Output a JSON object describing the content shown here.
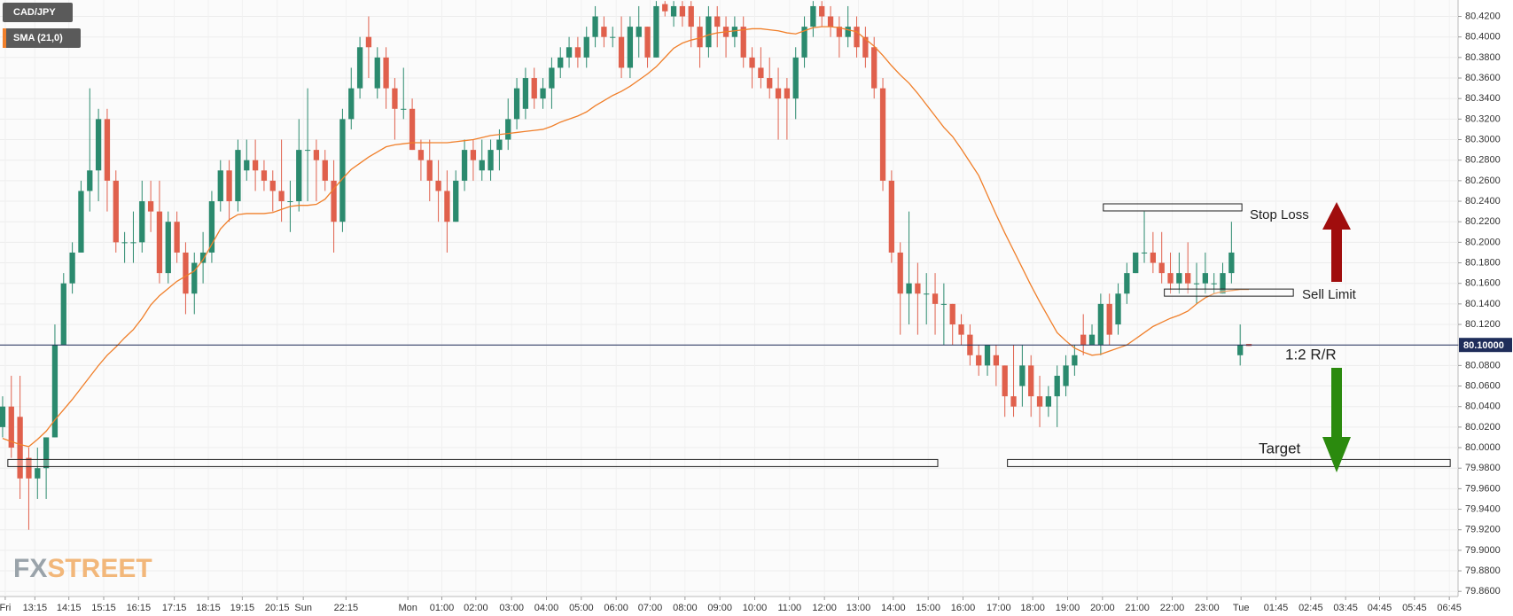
{
  "chart_data": {
    "type": "candlestick",
    "series": [
      {
        "name": "CAD/JPY",
        "type": "candlestick",
        "up_color": "#2b8a6e",
        "down_color": "#e0604c",
        "open": [
          80.02,
          80.04,
          80.03,
          79.99,
          79.97,
          79.98,
          80.01,
          80.1,
          80.16,
          80.19,
          80.25,
          80.27,
          80.32,
          80.26,
          80.2,
          80.2,
          80.2,
          80.24,
          80.23,
          80.17,
          80.22,
          80.19,
          80.15,
          80.18,
          80.19,
          80.24,
          80.27,
          80.24,
          80.27,
          80.28,
          80.27,
          80.26,
          80.25,
          80.24,
          80.24,
          80.29,
          80.29,
          80.28,
          80.26,
          80.22,
          80.32,
          80.35,
          80.4,
          80.35,
          80.38,
          80.35,
          80.33,
          80.33,
          80.29,
          80.28,
          80.26,
          80.25,
          80.22,
          80.26,
          80.29,
          80.27,
          80.27,
          80.29,
          80.3,
          80.32,
          80.33,
          80.36,
          80.34,
          80.35,
          80.37,
          80.38,
          80.39,
          80.38,
          80.4,
          80.41,
          80.4,
          80.4,
          80.37,
          80.4,
          80.41,
          80.38,
          80.432,
          80.42,
          80.43,
          80.43,
          80.41,
          80.39,
          80.42,
          80.41,
          80.4,
          80.41,
          80.38,
          80.37,
          80.36,
          80.35,
          80.35,
          80.34,
          80.38,
          80.41,
          80.43,
          80.42,
          80.41,
          80.4,
          80.41,
          80.4,
          80.39,
          80.35,
          80.26,
          80.19,
          80.15,
          80.16,
          80.15,
          80.15,
          80.14,
          80.14,
          80.12,
          80.11,
          80.09,
          80.08,
          80.09,
          80.08,
          80.05,
          80.06,
          80.08,
          80.05,
          80.04,
          80.05,
          80.06,
          80.08,
          80.11,
          80.1,
          80.1,
          80.14,
          80.12,
          80.15,
          80.17,
          80.19,
          80.19,
          80.18,
          80.17,
          80.16,
          80.17,
          80.16,
          80.16,
          80.16,
          80.15,
          80.17,
          80.09,
          80.101
        ],
        "high": [
          80.05,
          80.07,
          80.07,
          80.0,
          80.0,
          80.01,
          80.12,
          80.17,
          80.2,
          80.26,
          80.35,
          80.33,
          80.33,
          80.27,
          80.21,
          80.23,
          80.26,
          80.26,
          80.26,
          80.23,
          80.23,
          80.2,
          80.19,
          80.21,
          80.25,
          80.28,
          80.28,
          80.3,
          80.3,
          80.3,
          80.28,
          80.27,
          80.3,
          80.26,
          80.32,
          80.35,
          80.3,
          80.29,
          80.28,
          80.33,
          80.37,
          80.4,
          80.42,
          80.39,
          80.39,
          80.36,
          80.37,
          80.34,
          80.3,
          80.3,
          80.28,
          80.27,
          80.27,
          80.3,
          80.3,
          80.3,
          80.3,
          80.31,
          80.34,
          80.36,
          80.37,
          80.37,
          80.36,
          80.38,
          80.39,
          80.4,
          80.4,
          80.41,
          80.43,
          80.42,
          80.41,
          80.42,
          80.42,
          80.43,
          80.41,
          80.435,
          80.435,
          80.435,
          80.435,
          80.435,
          80.42,
          80.43,
          80.43,
          80.42,
          80.42,
          80.42,
          80.39,
          80.39,
          80.38,
          80.37,
          80.36,
          80.39,
          80.42,
          80.435,
          80.435,
          80.43,
          80.42,
          80.43,
          80.42,
          80.41,
          80.4,
          80.36,
          80.27,
          80.2,
          80.23,
          80.18,
          80.17,
          80.17,
          80.16,
          80.14,
          80.13,
          80.12,
          80.1,
          80.1,
          80.1,
          80.08,
          80.1,
          80.1,
          80.09,
          80.07,
          80.06,
          80.08,
          80.09,
          80.1,
          80.13,
          80.12,
          80.15,
          80.15,
          80.16,
          80.18,
          80.19,
          80.23,
          80.21,
          80.21,
          80.19,
          80.19,
          80.2,
          80.18,
          80.19,
          80.17,
          80.18,
          80.22,
          80.12,
          80.101
        ],
        "low": [
          80.01,
          79.99,
          79.95,
          79.92,
          79.95,
          79.95,
          80.01,
          80.1,
          80.15,
          80.19,
          80.23,
          80.24,
          80.23,
          80.19,
          80.18,
          80.18,
          80.19,
          80.21,
          80.16,
          80.16,
          80.18,
          80.13,
          80.13,
          80.16,
          80.18,
          80.23,
          80.22,
          80.23,
          80.26,
          80.25,
          80.25,
          80.23,
          80.22,
          80.21,
          80.23,
          80.24,
          80.24,
          80.25,
          80.19,
          80.21,
          80.31,
          80.34,
          80.36,
          80.34,
          80.33,
          80.3,
          80.32,
          80.29,
          80.26,
          80.24,
          80.22,
          80.19,
          80.22,
          80.25,
          80.26,
          80.26,
          80.26,
          80.27,
          80.29,
          80.31,
          80.32,
          80.33,
          80.33,
          80.33,
          80.36,
          80.37,
          80.37,
          80.37,
          80.39,
          80.39,
          80.39,
          80.36,
          80.36,
          80.38,
          80.37,
          80.38,
          80.42,
          80.41,
          80.41,
          80.39,
          80.37,
          80.38,
          80.39,
          80.38,
          80.39,
          80.37,
          80.35,
          80.35,
          80.34,
          80.3,
          80.3,
          80.32,
          80.37,
          80.4,
          80.41,
          80.4,
          80.38,
          80.39,
          80.38,
          80.37,
          80.34,
          80.25,
          80.18,
          80.11,
          80.12,
          80.11,
          80.12,
          80.11,
          80.1,
          80.1,
          80.1,
          80.08,
          80.07,
          80.07,
          80.06,
          80.03,
          80.03,
          80.04,
          80.03,
          80.02,
          80.03,
          80.02,
          80.05,
          80.07,
          80.09,
          80.1,
          80.09,
          80.1,
          80.11,
          80.14,
          80.17,
          80.18,
          80.17,
          80.16,
          80.15,
          80.15,
          80.15,
          80.14,
          80.15,
          80.15,
          80.15,
          80.16,
          80.08,
          80.099
        ],
        "close": [
          80.04,
          80.0,
          79.97,
          79.97,
          79.98,
          80.01,
          80.1,
          80.16,
          80.19,
          80.25,
          80.27,
          80.32,
          80.26,
          80.2,
          80.2,
          80.2,
          80.24,
          80.23,
          80.17,
          80.22,
          80.19,
          80.15,
          80.18,
          80.19,
          80.24,
          80.27,
          80.24,
          80.29,
          80.28,
          80.27,
          80.26,
          80.25,
          80.24,
          80.24,
          80.29,
          80.29,
          80.28,
          80.26,
          80.22,
          80.32,
          80.35,
          80.39,
          80.39,
          80.38,
          80.35,
          80.33,
          80.33,
          80.29,
          80.28,
          80.26,
          80.25,
          80.22,
          80.26,
          80.29,
          80.28,
          80.28,
          80.29,
          80.3,
          80.32,
          80.35,
          80.36,
          80.34,
          80.35,
          80.37,
          80.38,
          80.39,
          80.38,
          80.4,
          80.42,
          80.4,
          80.4,
          80.37,
          80.41,
          80.41,
          80.38,
          80.43,
          80.425,
          80.43,
          80.42,
          80.41,
          80.39,
          80.42,
          80.41,
          80.4,
          80.41,
          80.38,
          80.37,
          80.36,
          80.35,
          80.34,
          80.34,
          80.38,
          80.41,
          80.43,
          80.42,
          80.41,
          80.4,
          80.41,
          80.39,
          80.38,
          80.35,
          80.26,
          80.19,
          80.15,
          80.16,
          80.15,
          80.15,
          80.14,
          80.14,
          80.12,
          80.11,
          80.09,
          80.08,
          80.1,
          80.08,
          80.05,
          80.04,
          80.08,
          80.05,
          80.04,
          80.05,
          80.07,
          80.08,
          80.09,
          80.1,
          80.11,
          80.14,
          80.11,
          80.15,
          80.17,
          80.19,
          80.19,
          80.18,
          80.17,
          80.16,
          80.17,
          80.16,
          80.16,
          80.17,
          80.16,
          80.17,
          80.19,
          80.1,
          80.099
        ]
      },
      {
        "name": "SMA (21,0)",
        "type": "line",
        "color": "#f07f2a",
        "values": [
          80.009,
          80.006,
          80.003,
          80.001,
          80.008,
          80.016,
          80.027,
          80.037,
          80.047,
          80.058,
          80.069,
          80.08,
          80.09,
          80.098,
          80.107,
          80.115,
          80.126,
          80.139,
          80.148,
          80.155,
          80.162,
          80.167,
          80.172,
          80.183,
          80.198,
          80.213,
          80.222,
          80.227,
          80.228,
          80.228,
          80.228,
          80.229,
          80.232,
          80.235,
          80.236,
          80.236,
          80.237,
          80.242,
          80.252,
          80.262,
          80.271,
          80.277,
          80.283,
          80.288,
          80.293,
          80.295,
          80.296,
          80.297,
          80.297,
          80.297,
          80.297,
          80.297,
          80.298,
          80.299,
          80.3,
          80.302,
          80.304,
          80.305,
          80.306,
          80.307,
          80.308,
          80.309,
          80.31,
          80.313,
          80.317,
          80.32,
          80.323,
          80.327,
          80.333,
          80.338,
          80.343,
          80.347,
          80.352,
          80.358,
          80.364,
          80.371,
          80.38,
          80.389,
          80.394,
          80.397,
          80.399,
          80.402,
          80.404,
          80.405,
          80.406,
          80.407,
          80.408,
          80.408,
          80.407,
          80.406,
          80.404,
          80.403,
          80.406,
          80.409,
          80.41,
          80.41,
          80.409,
          80.407,
          80.405,
          80.398,
          80.391,
          80.382,
          80.372,
          80.363,
          80.355,
          80.345,
          80.334,
          80.323,
          80.312,
          80.303,
          80.291,
          80.278,
          80.265,
          80.246,
          80.227,
          80.209,
          80.192,
          80.175,
          80.158,
          80.142,
          80.127,
          80.112,
          80.104,
          80.097,
          80.093,
          80.09,
          80.091,
          80.094,
          80.097,
          80.1,
          80.106,
          80.112,
          80.118,
          80.122,
          80.126,
          80.129,
          80.133,
          80.14,
          80.146,
          80.15,
          80.152,
          80.153,
          80.154,
          80.154
        ]
      }
    ],
    "x": [
      0,
      1,
      2,
      3,
      4,
      5,
      6,
      7,
      8,
      9,
      10,
      11,
      12,
      13,
      14,
      15,
      16,
      17,
      18,
      19,
      20,
      21,
      22,
      23,
      24,
      25,
      26,
      27,
      28,
      29,
      30,
      31,
      32,
      33,
      34,
      35,
      36,
      37,
      38,
      39,
      40,
      41,
      42,
      43,
      44,
      45,
      46,
      47,
      48,
      49,
      50,
      51,
      52,
      53,
      54,
      55,
      56,
      57,
      58,
      59,
      60,
      61,
      62,
      63,
      64,
      65,
      66,
      67,
      68,
      69,
      70,
      71,
      72,
      73,
      74,
      75,
      76,
      77,
      78,
      79,
      80,
      81,
      82,
      83,
      84,
      85,
      86,
      87,
      88,
      89,
      90,
      91,
      92,
      93,
      94,
      95,
      96,
      97,
      98,
      99,
      100,
      101,
      102,
      103,
      104,
      105,
      106,
      107,
      108,
      109,
      110,
      111,
      112,
      113,
      114,
      115,
      116,
      117,
      118,
      119,
      120,
      121,
      122,
      123,
      124,
      125,
      126,
      127,
      128,
      129,
      130,
      131,
      132,
      133,
      134,
      135,
      136,
      137,
      138,
      139,
      140,
      141,
      142,
      143
    ],
    "xlim": [
      -0.3,
      167
    ],
    "xticks": [
      {
        "value": 0.3,
        "label": "Fri"
      },
      {
        "value": 3.7,
        "label": "13:15"
      },
      {
        "value": 7.6,
        "label": "14:15"
      },
      {
        "value": 11.6,
        "label": "15:15"
      },
      {
        "value": 15.6,
        "label": "16:15"
      },
      {
        "value": 19.7,
        "label": "17:15"
      },
      {
        "value": 23.6,
        "label": "18:15"
      },
      {
        "value": 27.5,
        "label": "19:15"
      },
      {
        "value": 31.5,
        "label": "20:15"
      },
      {
        "value": 34.5,
        "label": "Sun"
      },
      {
        "value": 39.4,
        "label": "22:15"
      },
      {
        "value": 46.5,
        "label": "Mon"
      },
      {
        "value": 50.4,
        "label": "01:00"
      },
      {
        "value": 54.3,
        "label": "02:00"
      },
      {
        "value": 58.4,
        "label": "03:00"
      },
      {
        "value": 62.4,
        "label": "04:00"
      },
      {
        "value": 66.4,
        "label": "05:00"
      },
      {
        "value": 70.4,
        "label": "06:00"
      },
      {
        "value": 74.3,
        "label": "07:00"
      },
      {
        "value": 78.3,
        "label": "08:00"
      },
      {
        "value": 82.3,
        "label": "09:00"
      },
      {
        "value": 86.3,
        "label": "10:00"
      },
      {
        "value": 90.3,
        "label": "11:00"
      },
      {
        "value": 94.3,
        "label": "12:00"
      },
      {
        "value": 98.2,
        "label": "13:00"
      },
      {
        "value": 102.2,
        "label": "14:00"
      },
      {
        "value": 106.2,
        "label": "15:00"
      },
      {
        "value": 110.2,
        "label": "16:00"
      },
      {
        "value": 114.3,
        "label": "17:00"
      },
      {
        "value": 118.2,
        "label": "18:00"
      },
      {
        "value": 122.2,
        "label": "19:00"
      },
      {
        "value": 126.2,
        "label": "20:00"
      },
      {
        "value": 130.2,
        "label": "21:00"
      },
      {
        "value": 134.2,
        "label": "22:00"
      },
      {
        "value": 138.2,
        "label": "23:00"
      },
      {
        "value": 142.1,
        "label": "Tue"
      },
      {
        "value": 146.1,
        "label": "01:45"
      },
      {
        "value": 150.1,
        "label": "02:45"
      },
      {
        "value": 154.1,
        "label": "03:45"
      },
      {
        "value": 158.0,
        "label": "04:45"
      },
      {
        "value": 162.0,
        "label": "05:45"
      },
      {
        "value": 166.0,
        "label": "06:45"
      }
    ],
    "ylim": [
      79.855,
      80.436
    ],
    "yticks": [
      {
        "value": 79.86,
        "label": "79.8600"
      },
      {
        "value": 79.88,
        "label": "79.8800"
      },
      {
        "value": 79.9,
        "label": "79.9000"
      },
      {
        "value": 79.92,
        "label": "79.9200"
      },
      {
        "value": 79.94,
        "label": "79.9400"
      },
      {
        "value": 79.96,
        "label": "79.9600"
      },
      {
        "value": 79.98,
        "label": "79.9800"
      },
      {
        "value": 80.0,
        "label": "80.0000"
      },
      {
        "value": 80.02,
        "label": "80.0200"
      },
      {
        "value": 80.04,
        "label": "80.0400"
      },
      {
        "value": 80.06,
        "label": "80.0600"
      },
      {
        "value": 80.08,
        "label": "80.0800"
      },
      {
        "value": 80.1,
        "label": "80.1000"
      },
      {
        "value": 80.12,
        "label": "80.1200"
      },
      {
        "value": 80.14,
        "label": "80.1400"
      },
      {
        "value": 80.16,
        "label": "80.1600"
      },
      {
        "value": 80.18,
        "label": "80.1800"
      },
      {
        "value": 80.2,
        "label": "80.2000"
      },
      {
        "value": 80.22,
        "label": "80.2200"
      },
      {
        "value": 80.24,
        "label": "80.2400"
      },
      {
        "value": 80.26,
        "label": "80.2600"
      },
      {
        "value": 80.28,
        "label": "80.2800"
      },
      {
        "value": 80.3,
        "label": "80.3000"
      },
      {
        "value": 80.32,
        "label": "80.3200"
      },
      {
        "value": 80.34,
        "label": "80.3400"
      },
      {
        "value": 80.36,
        "label": "80.3600"
      },
      {
        "value": 80.38,
        "label": "80.3800"
      },
      {
        "value": 80.4,
        "label": "80.4000"
      },
      {
        "value": 80.42,
        "label": "80.4200"
      }
    ],
    "grid": true,
    "current_price": {
      "value": 80.1,
      "label": "80.10000",
      "color": "#1f2d5a"
    },
    "annotations": [
      {
        "text": "Stop Loss",
        "value": 80.234,
        "x": [
          126.3,
          142.2
        ]
      },
      {
        "text": "Sell Limit",
        "value": 80.151,
        "x": [
          133.3,
          148.1
        ]
      },
      {
        "text": "Target",
        "value": 79.985,
        "x": [
          115.3,
          166.1
        ]
      }
    ],
    "support": {
      "value": 79.985,
      "x": [
        0.6,
        107.3
      ]
    },
    "rr_label": "1:2 R/R",
    "watermark": [
      "FX",
      "STREET"
    ]
  }
}
